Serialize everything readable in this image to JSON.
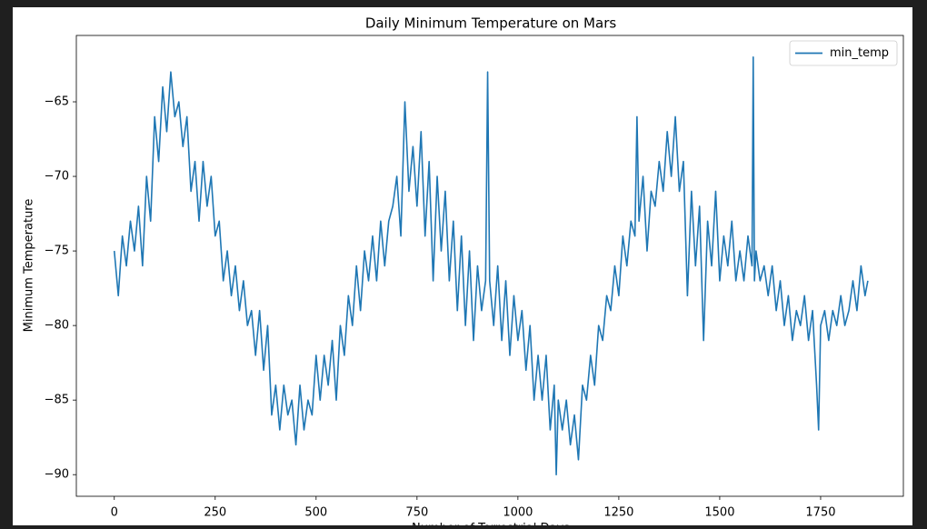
{
  "chart_data": {
    "type": "line",
    "title": "Daily Minimum Temperature on Mars",
    "x_label": "Number of Terrestrial Days",
    "y_label": "Minimum Temperature",
    "xlim": [
      -94,
      1955
    ],
    "ylim": [
      -91.45,
      -60.55
    ],
    "xticks": [
      0,
      250,
      500,
      750,
      1000,
      1250,
      1500,
      1750
    ],
    "yticks": [
      {
        "value": -90,
        "label": "−90"
      },
      {
        "value": -85,
        "label": "−85"
      },
      {
        "value": -80,
        "label": "−80"
      },
      {
        "value": -75,
        "label": "−75"
      },
      {
        "value": -70,
        "label": "−70"
      },
      {
        "value": -65,
        "label": "−65"
      }
    ],
    "grid": false,
    "legend": "upper right",
    "x": [
      0,
      10,
      20,
      30,
      40,
      50,
      60,
      70,
      80,
      90,
      100,
      110,
      120,
      130,
      140,
      150,
      160,
      170,
      180,
      190,
      200,
      210,
      220,
      230,
      240,
      250,
      260,
      270,
      280,
      290,
      300,
      310,
      320,
      330,
      340,
      350,
      360,
      370,
      380,
      390,
      400,
      410,
      420,
      430,
      440,
      450,
      460,
      470,
      480,
      490,
      500,
      510,
      520,
      530,
      540,
      550,
      560,
      570,
      580,
      590,
      600,
      610,
      620,
      630,
      640,
      650,
      660,
      670,
      680,
      690,
      700,
      710,
      720,
      730,
      740,
      750,
      760,
      770,
      780,
      790,
      800,
      810,
      820,
      830,
      840,
      850,
      860,
      870,
      880,
      890,
      900,
      910,
      920,
      925,
      930,
      940,
      950,
      960,
      970,
      980,
      990,
      1000,
      1010,
      1020,
      1030,
      1040,
      1050,
      1060,
      1070,
      1080,
      1090,
      1095,
      1100,
      1110,
      1120,
      1130,
      1140,
      1150,
      1160,
      1170,
      1180,
      1190,
      1200,
      1210,
      1220,
      1230,
      1240,
      1250,
      1260,
      1270,
      1280,
      1290,
      1295,
      1300,
      1310,
      1320,
      1330,
      1340,
      1350,
      1360,
      1370,
      1380,
      1390,
      1400,
      1410,
      1420,
      1430,
      1440,
      1450,
      1460,
      1470,
      1480,
      1490,
      1500,
      1510,
      1520,
      1530,
      1540,
      1550,
      1560,
      1570,
      1580,
      1583,
      1586,
      1590,
      1600,
      1610,
      1620,
      1630,
      1640,
      1650,
      1660,
      1670,
      1680,
      1690,
      1700,
      1710,
      1720,
      1730,
      1740,
      1745,
      1750,
      1760,
      1770,
      1780,
      1790,
      1800,
      1810,
      1820,
      1830,
      1840,
      1850,
      1860,
      1867
    ],
    "series": [
      {
        "name": "min_temp",
        "color": "#1f77b4",
        "values": [
          -75,
          -78,
          -74,
          -76,
          -73,
          -75,
          -72,
          -76,
          -70,
          -73,
          -66,
          -69,
          -64,
          -67,
          -63,
          -66,
          -65,
          -68,
          -66,
          -71,
          -69,
          -73,
          -69,
          -72,
          -70,
          -74,
          -73,
          -77,
          -75,
          -78,
          -76,
          -79,
          -77,
          -80,
          -79,
          -82,
          -79,
          -83,
          -80,
          -86,
          -84,
          -87,
          -84,
          -86,
          -85,
          -88,
          -84,
          -87,
          -85,
          -86,
          -82,
          -85,
          -82,
          -84,
          -81,
          -85,
          -80,
          -82,
          -78,
          -80,
          -76,
          -79,
          -75,
          -77,
          -74,
          -77,
          -73,
          -76,
          -73,
          -72,
          -70,
          -74,
          -65,
          -71,
          -68,
          -72,
          -67,
          -74,
          -69,
          -77,
          -70,
          -75,
          -71,
          -77,
          -73,
          -79,
          -74,
          -80,
          -75,
          -81,
          -76,
          -79,
          -77,
          -63,
          -77,
          -80,
          -76,
          -81,
          -77,
          -82,
          -78,
          -81,
          -79,
          -83,
          -80,
          -85,
          -82,
          -85,
          -82,
          -87,
          -84,
          -90,
          -85,
          -87,
          -85,
          -88,
          -86,
          -89,
          -84,
          -85,
          -82,
          -84,
          -80,
          -81,
          -78,
          -79,
          -76,
          -78,
          -74,
          -76,
          -73,
          -74,
          -66,
          -73,
          -70,
          -75,
          -71,
          -72,
          -69,
          -71,
          -67,
          -70,
          -66,
          -71,
          -69,
          -78,
          -71,
          -76,
          -72,
          -81,
          -73,
          -76,
          -71,
          -77,
          -74,
          -76,
          -73,
          -77,
          -75,
          -77,
          -74,
          -76,
          -62,
          -77,
          -75,
          -77,
          -76,
          -78,
          -76,
          -79,
          -77,
          -80,
          -78,
          -81,
          -79,
          -80,
          -78,
          -81,
          -79,
          -84,
          -87,
          -80,
          -79,
          -81,
          -79,
          -80,
          -78,
          -80,
          -79,
          -77,
          -79,
          -76,
          -78,
          -77
        ]
      }
    ]
  }
}
